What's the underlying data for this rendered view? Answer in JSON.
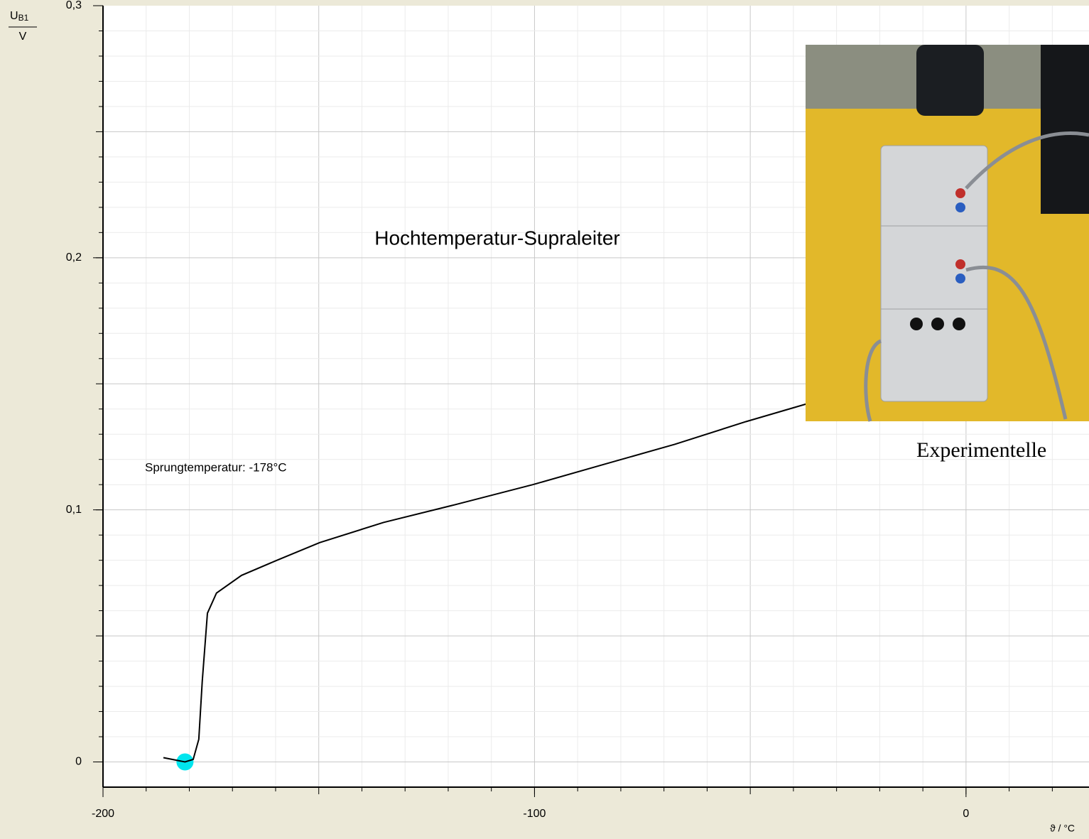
{
  "chart_data": {
    "type": "line",
    "title": "Hochtemperatur-Supraleiter",
    "annotation": "Sprungtemperatur: -178°C",
    "photo_caption": "Experimentelle",
    "y_label": "U",
    "y_label_sub": "B1",
    "y_label_unit": "V",
    "x_label": "ϑ / °C",
    "x": [
      -186,
      -181,
      -179.1,
      -177.8,
      -177,
      -175.8,
      -173.7,
      -167.9,
      -159.7,
      -149.8,
      -135,
      -118.5,
      -100.4,
      -84,
      -67.5,
      -51,
      -37
    ],
    "values": [
      0.0017,
      0,
      0.001,
      0.009,
      0.032,
      0.059,
      0.067,
      0.074,
      0.08,
      0.087,
      0.095,
      0.102,
      0.11,
      0.118,
      0.126,
      0.135,
      0.142
    ],
    "color": "#000000",
    "highlight": {
      "x": -181,
      "y": 0,
      "color": "#00e5ee"
    },
    "xlim": [
      -200,
      28.5
    ],
    "ylim": [
      -0.01,
      0.3
    ],
    "xticks": [
      -200,
      -100,
      0
    ],
    "yticks": [
      {
        "value": 0.3,
        "label": "0,3"
      },
      {
        "value": 0.2,
        "label": "0,2"
      },
      {
        "value": 0.1,
        "label": "0,1"
      },
      0
    ],
    "grid": true,
    "xgrid": [
      -190,
      -180,
      -170,
      -160,
      -150,
      -140,
      -130,
      -120,
      -110,
      -100,
      -90,
      -80,
      -70,
      -60,
      -50,
      -40,
      -30,
      -20,
      -10,
      0,
      10,
      20
    ],
    "ygrid": [
      0,
      0.01,
      0.02,
      0.03,
      0.04,
      0.05,
      0.06,
      0.07,
      0.08,
      0.09,
      0.1,
      0.11,
      0.12,
      0.13,
      0.14,
      0.15,
      0.16,
      0.17,
      0.18,
      0.19,
      0.2,
      0.21,
      0.22,
      0.23,
      0.24,
      0.25,
      0.26,
      0.27,
      0.28,
      0.29
    ]
  }
}
